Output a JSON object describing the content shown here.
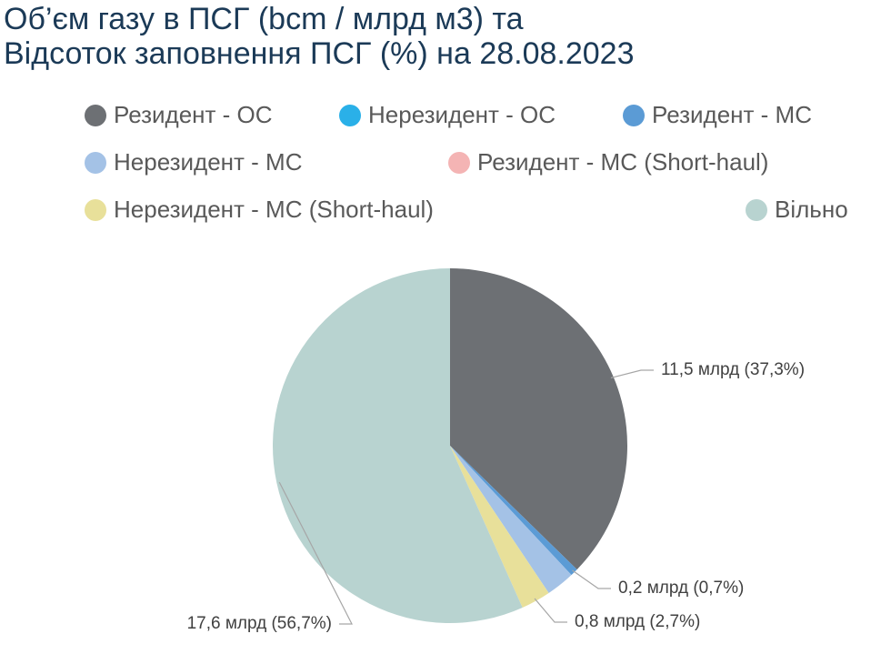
{
  "chart_data": {
    "type": "pie",
    "title": "Об’єм газу в ПСГ (bcm / млрд м3) та\nВідсоток заповнення ПСГ (%) на 28.08.2023",
    "categories": [
      "Резидент - ОС",
      "Нерезидент - ОС",
      "Резидент - МС",
      "Нерезидент - МС",
      "Резидент -  МС (Short-haul)",
      "Нерезидент -  МС (Short-haul)",
      "Вільно"
    ],
    "values": [
      37.3,
      0,
      0.7,
      2.6,
      0,
      2.7,
      56.7
    ],
    "value_labels": [
      "11,5 млрд (37,3%)",
      null,
      "0,2 млрд (0,7%)",
      null,
      null,
      "0,8 млрд (2,7%)",
      "17,6 млрд (56,7%)"
    ],
    "colors": [
      "#6d7074",
      "#2ab0e8",
      "#5b9bd5",
      "#a4c2e6",
      "#f4b4b4",
      "#e8e09a",
      "#b8d3d0"
    ]
  }
}
